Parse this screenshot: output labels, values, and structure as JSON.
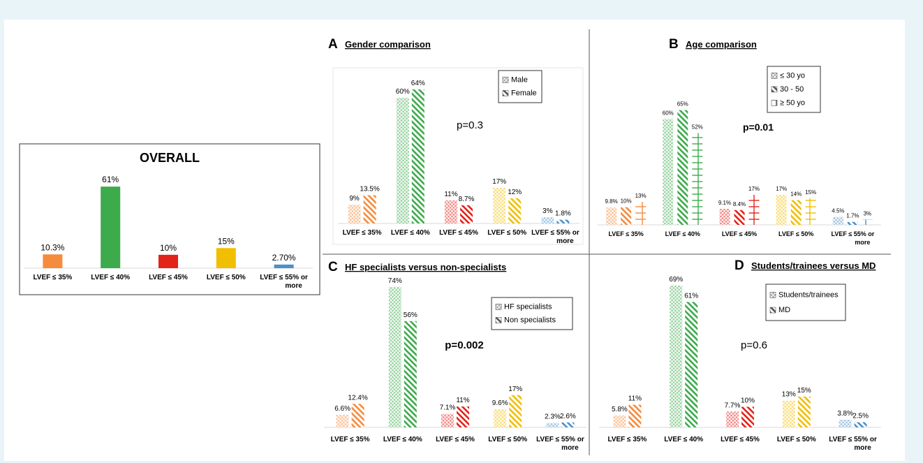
{
  "colors": {
    "background": "#E8F4F8",
    "orange": "#F58B3C",
    "green": "#3DAA4C",
    "red": "#E2231A",
    "yellow": "#F2BE00",
    "blue": "#4A90C9",
    "frame": "#555555"
  },
  "chart_data": [
    {
      "id": "overall",
      "type": "bar",
      "title": "OVERALL",
      "categories": [
        "LVEF ≤ 35%",
        "LVEF ≤ 40%",
        "LVEF ≤ 45%",
        "LVEF ≤ 50%",
        "LVEF ≤ 55% or more"
      ],
      "series": [
        {
          "values": [
            10.3,
            61,
            10,
            15,
            2.7
          ],
          "labels": [
            "10.3%",
            "61%",
            "10%",
            "15%",
            "2.70%"
          ],
          "pattern": "solid"
        }
      ],
      "ylim": [
        0,
        70
      ]
    },
    {
      "id": "A",
      "type": "bar",
      "panel_letter": "A",
      "title": "Gender comparison",
      "p_value": "p=0.3",
      "categories": [
        "LVEF ≤ 35%",
        "LVEF ≤ 40%",
        "LVEF ≤ 45%",
        "LVEF ≤ 50%",
        "LVEF ≤ 55% or more"
      ],
      "series": [
        {
          "name": "Male",
          "values": [
            9,
            60,
            11,
            17,
            3
          ],
          "labels": [
            "9%",
            "60%",
            "11%",
            "17%",
            "3%"
          ],
          "pattern": "cross"
        },
        {
          "name": "Female",
          "values": [
            13.5,
            64,
            8.7,
            12,
            1.8
          ],
          "labels": [
            "13.5%",
            "64%",
            "8.7%",
            "12%",
            "1.8%"
          ],
          "pattern": "diag"
        }
      ],
      "ylim": [
        0,
        72
      ]
    },
    {
      "id": "B",
      "type": "bar",
      "panel_letter": "B",
      "title": "Age comparison",
      "p_value": "p=0.01",
      "categories": [
        "LVEF ≤ 35%",
        "LVEF ≤ 40%",
        "LVEF ≤ 45%",
        "LVEF ≤ 50%",
        "LVEF ≤ 55% or more"
      ],
      "series": [
        {
          "name": "≤ 30 yo",
          "values": [
            9.8,
            60,
            9.1,
            17,
            4.5
          ],
          "labels": [
            "9.8%",
            "60%",
            "9.1%",
            "17%",
            "4.5%"
          ],
          "pattern": "cross"
        },
        {
          "name": "30 - 50",
          "values": [
            10,
            65,
            8.4,
            14,
            1.7
          ],
          "labels": [
            "10%",
            "65%",
            "8.4%",
            "14%",
            "1.7%"
          ],
          "pattern": "diag"
        },
        {
          "name": "≥ 50 yo",
          "values": [
            13,
            52,
            17,
            15,
            3
          ],
          "labels": [
            "13%",
            "52%",
            "17%",
            "15%",
            "3%"
          ],
          "pattern": "grid"
        }
      ],
      "ylim": [
        0,
        72
      ]
    },
    {
      "id": "C",
      "type": "bar",
      "panel_letter": "C",
      "title": "HF specialists versus non-specialists",
      "p_value": "p=0.002",
      "categories": [
        "LVEF ≤ 35%",
        "LVEF ≤ 40%",
        "LVEF ≤ 45%",
        "LVEF ≤ 50%",
        "LVEF ≤ 55% or more"
      ],
      "series": [
        {
          "name": "HF specialists",
          "values": [
            6.6,
            74,
            7.1,
            9.6,
            2.3
          ],
          "labels": [
            "6.6%",
            "74%",
            "7.1%",
            "9.6%",
            "2.3%"
          ],
          "pattern": "cross"
        },
        {
          "name": "Non specialists",
          "values": [
            12.4,
            56,
            11,
            17,
            2.6
          ],
          "labels": [
            "12.4%",
            "56%",
            "11%",
            "17%",
            "2.6%"
          ],
          "pattern": "diag"
        }
      ],
      "ylim": [
        0,
        78
      ]
    },
    {
      "id": "D",
      "type": "bar",
      "panel_letter": "D",
      "title": "Students/trainees versus MD",
      "p_value": "p=0.6",
      "categories": [
        "LVEF ≤ 35%",
        "LVEF ≤ 40%",
        "LVEF ≤ 45%",
        "LVEF ≤ 50%",
        "LVEF ≤ 55% or more"
      ],
      "series": [
        {
          "name": "Students/trainees",
          "values": [
            5.8,
            69,
            7.7,
            13,
            3.8
          ],
          "labels": [
            "5.8%",
            "69%",
            "7.7%",
            "13%",
            "3.8%"
          ],
          "pattern": "cross"
        },
        {
          "name": "MD",
          "values": [
            11,
            61,
            10,
            15,
            2.5
          ],
          "labels": [
            "11%",
            "61%",
            "10%",
            "15%",
            "2.5%"
          ],
          "pattern": "diag"
        }
      ],
      "ylim": [
        0,
        72
      ]
    }
  ]
}
